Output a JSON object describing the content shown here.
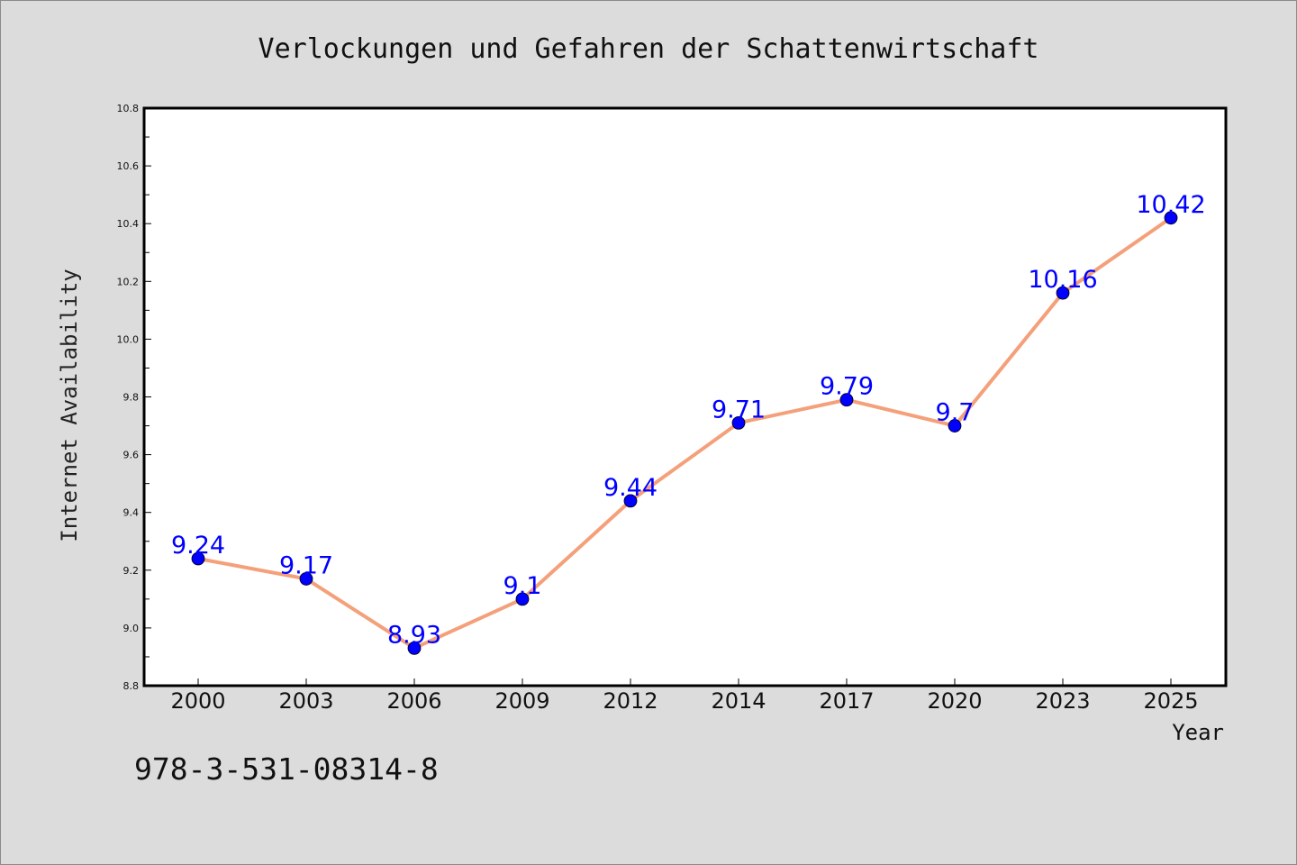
{
  "chart_data": {
    "type": "line",
    "title": "Verlockungen und Gefahren der Schattenwirtschaft",
    "xlabel": "Year",
    "ylabel": "Internet Availability",
    "categories": [
      "2000",
      "2003",
      "2006",
      "2009",
      "2012",
      "2014",
      "2017",
      "2020",
      "2023",
      "2025"
    ],
    "series": [
      {
        "values": [
          9.24,
          9.17,
          8.93,
          9.1,
          9.44,
          9.71,
          9.79,
          9.7,
          10.16,
          10.42
        ],
        "data_labels": [
          "9.24",
          "9.17",
          "8.93",
          "9.1",
          "9.44",
          "9.71",
          "9.79",
          "9.7",
          "10.16",
          "10.42"
        ],
        "line_color": "#f4a07a",
        "marker_color": "#0000ff"
      }
    ],
    "ylim": [
      8.8,
      10.8
    ],
    "yticks": [
      "8.8",
      "9.0",
      "9.2",
      "9.4",
      "9.6",
      "9.8",
      "10.0",
      "10.2",
      "10.4",
      "10.6",
      "10.8"
    ],
    "grid": false,
    "legend": "none"
  },
  "footer_code": "978-3-531-08314-8",
  "colors": {
    "background": "#dcdcdc",
    "plot_area": "#ffffff",
    "axis": "#000000",
    "line": "#f4a07a",
    "marker": "#0000ff",
    "data_label": "#0000ff"
  }
}
